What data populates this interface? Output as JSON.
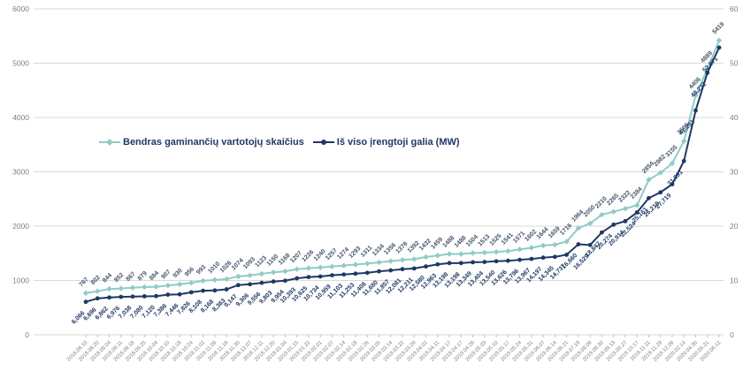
{
  "chart_data": {
    "type": "line",
    "title": "",
    "legend_position": "center-left-inside",
    "grid": true,
    "x_dates": [
      "2018.08.10",
      "2018.08.20",
      "2018.09.04",
      "2018.09.11",
      "2018.09.18",
      "2018.09.25",
      "2018.10.04",
      "2018.10.10",
      "2018.10.18",
      "2018.10.24",
      "2018.11.02",
      "2018.11.09",
      "2018.11.16",
      "2018.11.30",
      "2018.12.07",
      "2018.12.11",
      "2018.12.20",
      "2019.01.04",
      "2019.01.15",
      "2019.01.22",
      "2019.02.01",
      "2019.02.07",
      "2019.02.14",
      "2019.02.18",
      "2019.02.26",
      "2019.03.05",
      "2019.03.14",
      "2019.03.22",
      "2019.03.29",
      "2019.04.02",
      "2019.04.11",
      "2019.04.17",
      "2019.04.17",
      "2019.04.26",
      "2019.05.03",
      "2019.05.10",
      "2019.05.17",
      "2019.05.24",
      "2019.05.31",
      "2019.06.07",
      "2019.06.14",
      "2019.06.21",
      "2019.07.19",
      "2019.08.09",
      "2019.08.30",
      "2019.09.13",
      "2019.09.27",
      "2019.10.17",
      "2019.11.11",
      "2019.11.29",
      "2019.12.09",
      "2020.02.14",
      "2020.04.30",
      "2020.05.21",
      "2020.06.12"
    ],
    "series": [
      {
        "name": "Bendras gaminančių vartotojų skaičius",
        "axis": "left",
        "color": "#8fccc5",
        "label_color": "#44546a",
        "marker": "diamond",
        "values": [
          767,
          802,
          844,
          852,
          867,
          879,
          884,
          907,
          930,
          956,
          993,
          1010,
          1026,
          1074,
          1093,
          1123,
          1150,
          1168,
          1207,
          1226,
          1240,
          1257,
          1274,
          1293,
          1311,
          1334,
          1356,
          1378,
          1392,
          1432,
          1459,
          1488,
          1488,
          1504,
          1513,
          1525,
          1541,
          1571,
          1602,
          1644,
          1659,
          1716,
          1964,
          2050,
          2210,
          2265,
          2322,
          2384,
          2854,
          2982,
          3155,
          3565,
          4406,
          4889,
          5419
        ]
      },
      {
        "name": "Iš viso įrengtoji galia (MW)",
        "axis": "right",
        "color": "#1f3864",
        "label_color": "#1f3864",
        "marker": "circle",
        "decimal_comma_labels": true,
        "values": [
          6.066,
          6.696,
          6.862,
          6.976,
          7.038,
          7.08,
          7.12,
          7.386,
          7.446,
          7.826,
          8.108,
          8.168,
          8.363,
          9.147,
          9.306,
          9.556,
          9.803,
          9.954,
          10.393,
          10.625,
          10.734,
          10.959,
          11.103,
          11.253,
          11.408,
          11.68,
          11.857,
          12.081,
          12.211,
          12.58,
          12.963,
          13.198,
          13.198,
          13.349,
          13.404,
          13.54,
          13.626,
          13.796,
          13.967,
          14.197,
          14.345,
          14.737,
          16.66,
          16.529,
          18.847,
          20.274,
          20.914,
          22.524,
          25.161,
          26.219,
          27.719,
          31.991,
          41.291,
          48.232,
          52.871
        ]
      }
    ],
    "left_axis": {
      "min": 0,
      "max": 6000,
      "step": 1000,
      "ticks": [
        "0",
        "1000",
        "2000",
        "3000",
        "4000",
        "5000",
        "6000"
      ]
    },
    "right_axis": {
      "min": 0,
      "max": 60,
      "step": 10,
      "ticks": [
        "0",
        "10",
        "20",
        "30",
        "40",
        "50",
        "60"
      ]
    },
    "colors": {
      "gridline": "#d9d9d9",
      "axis_text": "#7f7f7f",
      "tick_mark": "#bfbfbf"
    }
  },
  "legend": {
    "items": [
      {
        "label": "Bendras gaminančių vartotojų skaičius"
      },
      {
        "label": "Iš viso įrengtoji galia (MW)"
      }
    ]
  }
}
